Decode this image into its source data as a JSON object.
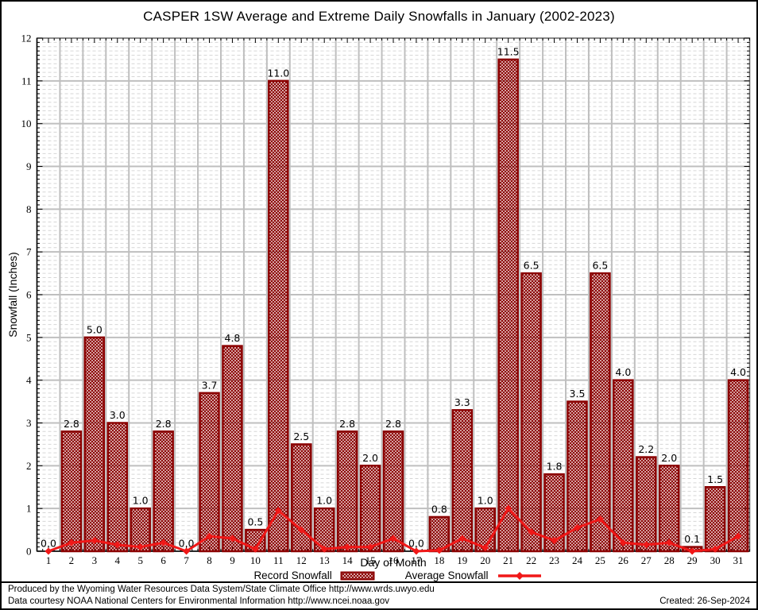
{
  "chart_data": {
    "type": "bar",
    "title": "CASPER 1SW Average and Extreme Daily Snowfalls in January (2002-2023)",
    "xlabel": "Day of Month",
    "ylabel": "Snowfall (Inches)",
    "ylim": [
      0,
      12
    ],
    "grid": "on",
    "legend_position": "bottom",
    "categories": [
      1,
      2,
      3,
      4,
      5,
      6,
      7,
      8,
      9,
      10,
      11,
      12,
      13,
      14,
      15,
      16,
      17,
      18,
      19,
      20,
      21,
      22,
      23,
      24,
      25,
      26,
      27,
      28,
      29,
      30,
      31
    ],
    "series": [
      {
        "name": "Record Snowfall",
        "type": "bar",
        "values": [
          0.0,
          2.8,
          5.0,
          3.0,
          1.0,
          2.8,
          0.0,
          3.7,
          4.8,
          0.5,
          11.0,
          2.5,
          1.0,
          2.8,
          2.0,
          2.8,
          0.0,
          0.8,
          3.3,
          1.0,
          11.5,
          6.5,
          1.8,
          3.5,
          6.5,
          4.0,
          2.2,
          2.0,
          0.1,
          1.5,
          4.0
        ]
      },
      {
        "name": "Average Snowfall",
        "type": "line",
        "values": [
          0.0,
          0.2,
          0.25,
          0.15,
          0.1,
          0.2,
          0.0,
          0.35,
          0.3,
          0.05,
          0.95,
          0.5,
          0.05,
          0.1,
          0.1,
          0.3,
          0.0,
          0.02,
          0.3,
          0.08,
          1.0,
          0.45,
          0.25,
          0.55,
          0.75,
          0.2,
          0.15,
          0.2,
          0.0,
          0.05,
          0.35
        ]
      }
    ],
    "bar_value_labels": [
      "0.0",
      "2.8",
      "5.0",
      "3.0",
      "1.0",
      "2.8",
      "0.0",
      "3.7",
      "4.8",
      "0.5",
      "11.0",
      "2.5",
      "1.0",
      "2.8",
      "2.0",
      "2.8",
      "0.0",
      "0.8",
      "3.3",
      "1.0",
      "11.5",
      "6.5",
      "1.8",
      "3.5",
      "6.5",
      "4.0",
      "2.2",
      "2.0",
      "0.1",
      "1.5",
      "4.0"
    ]
  },
  "legend": {
    "record_label": "Record Snowfall",
    "average_label": "Average Snowfall"
  },
  "colors": {
    "bar_border": "#8b0000",
    "bar_hatch": "#8b0000",
    "line": "#f01818",
    "grid_major": "#bfbfbf",
    "grid_minor": "#d6d6d6",
    "frame": "#666666",
    "axis": "#000000"
  },
  "footer": {
    "line1": "Produced by the Wyoming Water Resources Data System/State Climate Office http://www.wrds.uwyo.edu",
    "line2": "Data courtesy NOAA National Centers for Environmental Information http://www.ncei.noaa.gov",
    "created": "Created: 26-Sep-2024"
  }
}
